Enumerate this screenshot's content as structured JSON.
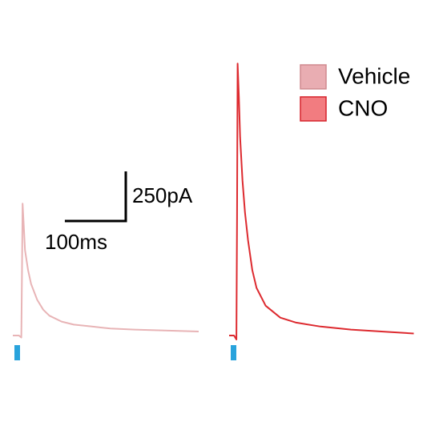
{
  "chart_data": [
    {
      "type": "line",
      "xlim": [
        0,
        305
      ],
      "ylim": [
        0,
        1400
      ],
      "x": [
        0,
        10,
        14,
        15,
        16,
        18,
        20,
        25,
        30,
        40,
        50,
        60,
        80,
        100,
        130,
        160,
        200,
        250,
        305
      ],
      "series": [
        {
          "name": "Vehicle",
          "color": "#e8b4b6",
          "fill": "#e9adb2",
          "values": [
            0,
            0,
            -10,
            300,
            665,
            550,
            430,
            330,
            260,
            180,
            130,
            100,
            70,
            55,
            45,
            35,
            30,
            25,
            20
          ]
        }
      ],
      "scale_bar": {
        "x_value": 100,
        "x_label": "100ms",
        "y_value": 250,
        "y_label": "250pA"
      }
    },
    {
      "type": "line",
      "xlim": [
        0,
        305
      ],
      "ylim": [
        0,
        1400
      ],
      "x": [
        0,
        8,
        12,
        13,
        14,
        16,
        18,
        22,
        26,
        31,
        38,
        45,
        60,
        84,
        110,
        150,
        200,
        250,
        303
      ],
      "series": [
        {
          "name": "CNO",
          "color": "#dd2a2f",
          "fill": "#f27c80",
          "values": [
            0,
            0,
            -20,
            600,
            1370,
            1200,
            1000,
            780,
            620,
            480,
            330,
            240,
            150,
            90,
            65,
            45,
            30,
            20,
            10
          ]
        }
      ]
    }
  ]
}
